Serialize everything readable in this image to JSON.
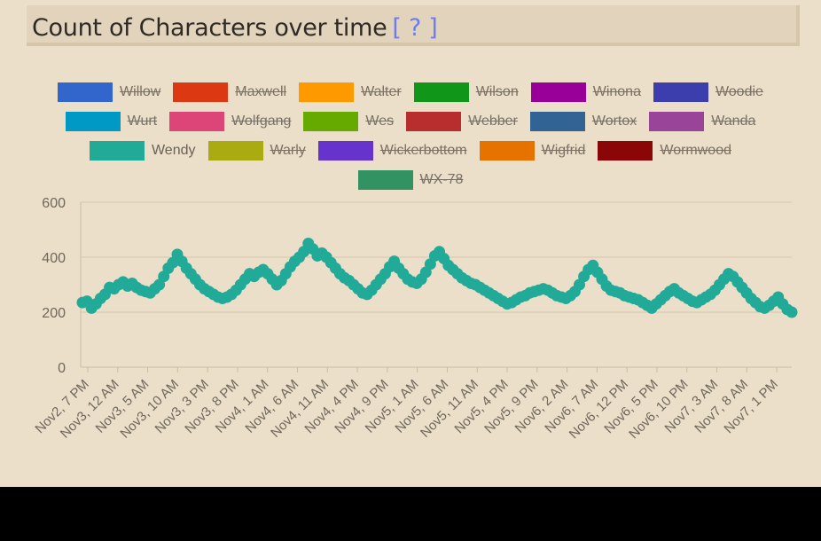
{
  "header": {
    "title": "Count of Characters over time",
    "help_link": "[ ? ]"
  },
  "legend_rows": [
    [
      {
        "label": "Willow",
        "color": "#3366cc",
        "active": false
      },
      {
        "label": "Maxwell",
        "color": "#dc3912",
        "active": false
      },
      {
        "label": "Walter",
        "color": "#ff9900",
        "active": false
      },
      {
        "label": "Wilson",
        "color": "#109618",
        "active": false
      },
      {
        "label": "Winona",
        "color": "#990099",
        "active": false
      },
      {
        "label": "Woodie",
        "color": "#3b3eac",
        "active": false
      }
    ],
    [
      {
        "label": "Wurt",
        "color": "#0099c6",
        "active": false
      },
      {
        "label": "Wolfgang",
        "color": "#dd4477",
        "active": false
      },
      {
        "label": "Wes",
        "color": "#66aa00",
        "active": false
      },
      {
        "label": "Webber",
        "color": "#b82e2e",
        "active": false
      },
      {
        "label": "Wortox",
        "color": "#316395",
        "active": false
      },
      {
        "label": "Wanda",
        "color": "#994499",
        "active": false
      }
    ],
    [
      {
        "label": "Wendy",
        "color": "#22aa99",
        "active": true
      },
      {
        "label": "Warly",
        "color": "#aaaa11",
        "active": false
      },
      {
        "label": "Wickerbottom",
        "color": "#6633cc",
        "active": false
      },
      {
        "label": "Wigfrid",
        "color": "#e67300",
        "active": false
      },
      {
        "label": "Wormwood",
        "color": "#8b0707",
        "active": false
      }
    ],
    [
      {
        "label": "WX-78",
        "color": "#329262",
        "active": false
      }
    ]
  ],
  "chart_data": {
    "type": "scatter",
    "title": "Count of Characters over time",
    "series": [
      {
        "name": "Wendy",
        "color": "#22aa99",
        "values": [
          235,
          240,
          215,
          230,
          250,
          265,
          290,
          285,
          300,
          310,
          295,
          305,
          290,
          280,
          275,
          270,
          285,
          300,
          330,
          360,
          380,
          410,
          385,
          360,
          340,
          320,
          300,
          285,
          275,
          265,
          255,
          250,
          255,
          265,
          280,
          300,
          320,
          340,
          330,
          345,
          355,
          340,
          320,
          300,
          315,
          340,
          365,
          385,
          400,
          420,
          450,
          430,
          405,
          415,
          400,
          380,
          360,
          340,
          325,
          315,
          300,
          285,
          270,
          265,
          280,
          300,
          320,
          340,
          365,
          385,
          360,
          340,
          320,
          310,
          305,
          320,
          345,
          375,
          405,
          420,
          395,
          370,
          355,
          340,
          325,
          315,
          305,
          300,
          290,
          280,
          270,
          260,
          250,
          240,
          230,
          235,
          245,
          255,
          260,
          270,
          275,
          280,
          285,
          280,
          270,
          260,
          255,
          250,
          260,
          275,
          300,
          330,
          355,
          370,
          345,
          320,
          295,
          280,
          275,
          270,
          260,
          255,
          250,
          245,
          235,
          225,
          215,
          230,
          245,
          260,
          275,
          285,
          270,
          260,
          250,
          240,
          235,
          245,
          255,
          265,
          280,
          300,
          320,
          340,
          330,
          310,
          290,
          270,
          250,
          235,
          220,
          215,
          225,
          240,
          255,
          230,
          210,
          200
        ],
        "x_labels": [
          "Nov2, 7 PM",
          "Nov3, 12 AM",
          "Nov3, 5 AM",
          "Nov3, 10 AM",
          "Nov3, 3 PM",
          "Nov3, 8 PM",
          "Nov4, 1 AM",
          "Nov4, 6 AM",
          "Nov4, 11 AM",
          "Nov4, 4 PM",
          "Nov4, 9 PM",
          "Nov5, 1 AM",
          "Nov5, 6 AM",
          "Nov5, 11 AM",
          "Nov5, 4 PM",
          "Nov5, 9 PM",
          "Nov6, 2 AM",
          "Nov6, 7 AM",
          "Nov6, 12 PM",
          "Nov6, 5 PM",
          "Nov6, 10 PM",
          "Nov7, 3 AM",
          "Nov7, 8 AM",
          "Nov7, 1 PM"
        ]
      }
    ],
    "yticks": [
      0,
      200,
      400,
      600
    ],
    "ylim": [
      0,
      600
    ],
    "xlabel": "",
    "ylabel": "",
    "grid": true,
    "legend": "top"
  }
}
